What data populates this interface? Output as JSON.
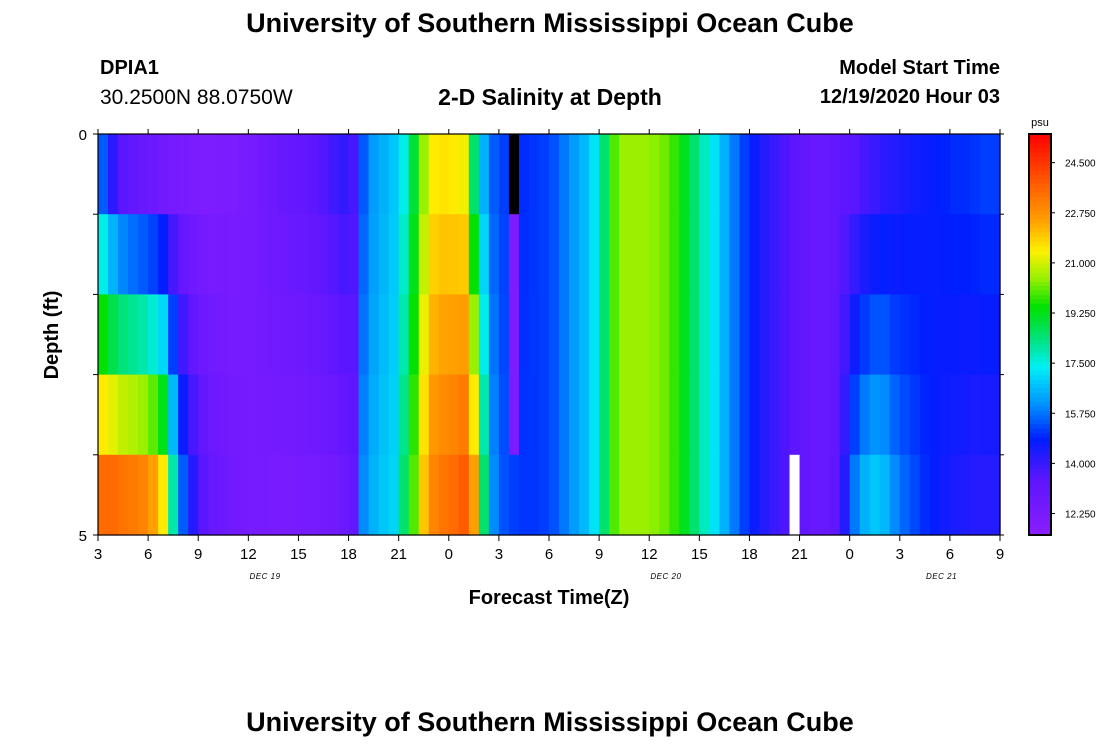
{
  "header": {
    "title": "University of Southern Mississippi Ocean Cube",
    "station_id": "DPIA1",
    "station_coords": "30.2500N 88.0750W",
    "plot_title": "2-D Salinity at Depth",
    "model_label": "Model Start Time",
    "model_time": "12/19/2020 Hour 03"
  },
  "footer": {
    "title": "University of Southern Mississippi Ocean Cube"
  },
  "chart_data": {
    "type": "heatmap",
    "title": "2-D Salinity at Depth",
    "xlabel": "Forecast Time(Z)",
    "ylabel": "Depth (ft)",
    "x_tick_labels": [
      "3",
      "6",
      "9",
      "12",
      "15",
      "18",
      "21",
      "0",
      "3",
      "6",
      "9",
      "12",
      "15",
      "18",
      "21",
      "0",
      "3",
      "6",
      "9"
    ],
    "date_labels": [
      {
        "text": "DEC 19",
        "at_hour": 13
      },
      {
        "text": "DEC 20",
        "at_hour": 37
      },
      {
        "text": "DEC 21",
        "at_hour": 53.5
      }
    ],
    "x_range_hours": [
      3,
      57
    ],
    "y_range": [
      0,
      5
    ],
    "y_tick_labels": [
      "0",
      "5"
    ],
    "depth_rows": 5,
    "colorbar": {
      "unit": "psu",
      "range": [
        11.5,
        25.5
      ],
      "tick_labels": [
        "24.500",
        "22.750",
        "21.000",
        "19.250",
        "17.500",
        "15.750",
        "14.000",
        "12.250"
      ],
      "tick_values": [
        24.5,
        22.75,
        21.0,
        19.25,
        17.5,
        15.75,
        14.0,
        12.25
      ]
    },
    "surface_profile": [
      15.5,
      14.2,
      13.5,
      13.2,
      13.0,
      12.8,
      12.6,
      12.4,
      12.3,
      12.2,
      12.1,
      12.1,
      12.2,
      12.2,
      12.3,
      12.4,
      12.6,
      12.8,
      13.0,
      13.1,
      13.2,
      13.4,
      13.6,
      13.9,
      14.1,
      13.8,
      15.5,
      16.2,
      16.5,
      16.8,
      17.5,
      19.0,
      20.5,
      21.5,
      21.6,
      21.5,
      21.3,
      18.5,
      16.5,
      15.5,
      15.2,
      15.0,
      15.0,
      15.1,
      15.2,
      15.4,
      15.8,
      16.2,
      16.6,
      17.2,
      18.5,
      20.0,
      20.5,
      20.5,
      20.5,
      20.4,
      20.2,
      19.8,
      19.2,
      18.5,
      17.8,
      17.2,
      16.5,
      15.8,
      15.2,
      14.7,
      14.3,
      14.0,
      13.7,
      13.4,
      13.2,
      13.0,
      13.0,
      13.2,
      13.4,
      13.5,
      13.8,
      14.0,
      14.2,
      14.3,
      14.5,
      14.6,
      14.7,
      14.8,
      14.9,
      15.0,
      15.0,
      15.1,
      15.2,
      15.2
    ],
    "deep_profile": [
      23.5,
      23.5,
      23.3,
      23.2,
      23.0,
      22.5,
      21.5,
      18.0,
      15.5,
      14.3,
      13.5,
      13.0,
      12.8,
      12.6,
      12.5,
      12.4,
      12.4,
      12.3,
      12.3,
      12.3,
      12.4,
      12.4,
      12.5,
      12.6,
      12.8,
      13.2,
      16.0,
      16.5,
      16.8,
      17.0,
      18.5,
      20.0,
      22.0,
      23.0,
      23.3,
      23.5,
      23.8,
      22.5,
      18.5,
      16.0,
      15.4,
      15.2,
      15.1,
      15.1,
      15.2,
      15.4,
      15.8,
      16.2,
      16.6,
      17.2,
      18.5,
      20.0,
      20.5,
      20.5,
      20.5,
      20.4,
      20.2,
      19.8,
      19.2,
      18.5,
      17.8,
      17.2,
      16.5,
      15.8,
      15.2,
      14.7,
      14.3,
      14.0,
      13.7,
      13.4,
      13.2,
      13.0,
      13.0,
      13.3,
      14.3,
      15.8,
      16.5,
      16.8,
      16.6,
      16.0,
      15.6,
      15.3,
      15.0,
      14.8,
      14.6,
      14.5,
      14.4,
      14.3,
      14.3,
      14.3
    ],
    "deep_start_col": [
      1,
      1,
      1,
      1,
      1
    ],
    "missing_cells": [
      {
        "col": 41,
        "row": 0,
        "color": "#000000"
      },
      {
        "col": 69,
        "row": 4,
        "color": "#ffffff"
      }
    ],
    "highlight_cells": [
      {
        "col": 41,
        "row": 1,
        "value": 12.05
      },
      {
        "col": 41,
        "row": 2,
        "value": 12.15
      },
      {
        "col": 41,
        "row": 3,
        "value": 12.2
      }
    ]
  }
}
